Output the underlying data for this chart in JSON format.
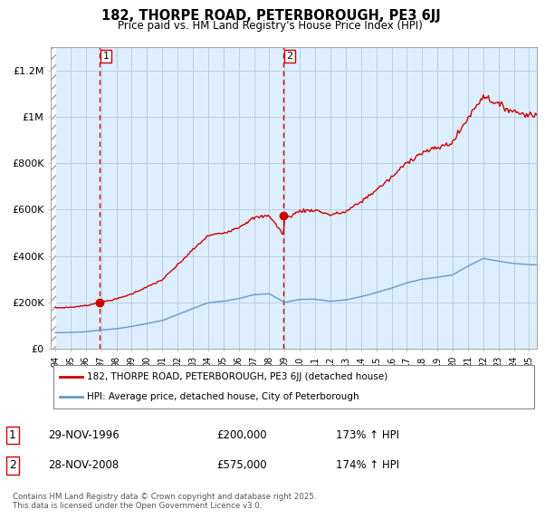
{
  "title_line1": "182, THORPE ROAD, PETERBOROUGH, PE3 6JJ",
  "title_line2": "Price paid vs. HM Land Registry's House Price Index (HPI)",
  "sale1_date": "29-NOV-1996",
  "sale1_price": 200000,
  "sale1_hpi": "173% ↑ HPI",
  "sale1_label": "1",
  "sale2_date": "28-NOV-2008",
  "sale2_price": 575000,
  "sale2_hpi": "174% ↑ HPI",
  "sale2_label": "2",
  "legend_line1": "182, THORPE ROAD, PETERBOROUGH, PE3 6JJ (detached house)",
  "legend_line2": "HPI: Average price, detached house, City of Peterborough",
  "footnote": "Contains HM Land Registry data © Crown copyright and database right 2025.\nThis data is licensed under the Open Government Licence v3.0.",
  "line_color_red": "#cc0000",
  "line_color_blue": "#6699cc",
  "grid_color": "#bbccdd",
  "bg_color": "#ddeeff",
  "dashed_line_color": "#cc0000",
  "ylim": [
    0,
    1300000
  ],
  "yticks": [
    0,
    200000,
    400000,
    600000,
    800000,
    1000000,
    1200000
  ],
  "ytick_labels": [
    "£0",
    "£200K",
    "£400K",
    "£600K",
    "£800K",
    "£1M",
    "£1.2M"
  ],
  "sale1_x": 1996.92,
  "sale2_x": 2008.92,
  "xmin": 1993.7,
  "xmax": 2025.5
}
